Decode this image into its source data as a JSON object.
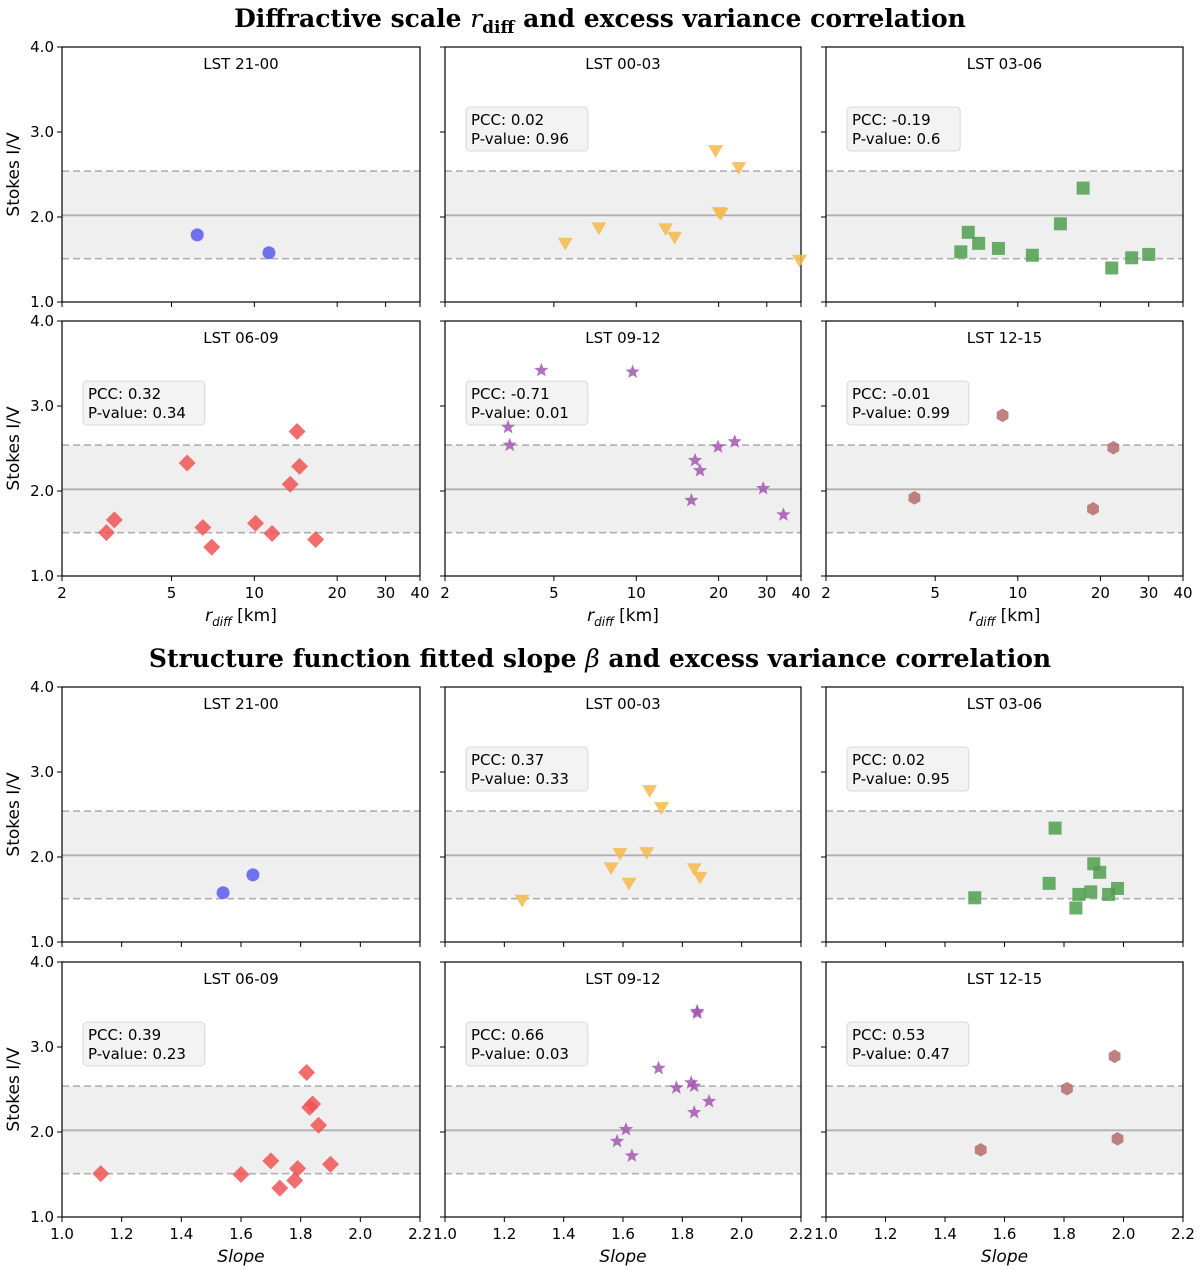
{
  "figure": {
    "title_top_prefix": "Diffractive scale ",
    "title_top_var": "r",
    "title_top_sub": "diff",
    "title_top_suffix": " and excess variance correlation",
    "title_bottom_prefix": "Structure function fitted slope ",
    "title_bottom_var": "β",
    "title_bottom_suffix": " and excess variance correlation"
  },
  "series_styles": {
    "LST 21-00": {
      "marker": "circle",
      "color": "#5a5aee"
    },
    "LST 00-03": {
      "marker": "triangle_down",
      "color": "#f6b84c"
    },
    "LST 03-06": {
      "marker": "square",
      "color": "#4f9f4f"
    },
    "LST 06-09": {
      "marker": "diamond",
      "color": "#f05555"
    },
    "LST 09-12": {
      "marker": "star",
      "color": "#a357b0"
    },
    "LST 12-15": {
      "marker": "hexagon",
      "color": "#b56b6b"
    }
  },
  "reference": {
    "mean": 2.02,
    "lower": 1.51,
    "upper": 2.54
  },
  "chart_data": [
    {
      "type": "scatter",
      "title": "Diffractive scale r_diff and excess variance correlation",
      "xscale": "log",
      "xlim": [
        2,
        40
      ],
      "ylim": [
        1.0,
        4.0
      ],
      "xticks": [
        2,
        5,
        10,
        20,
        30,
        40
      ],
      "yticks": [
        1.0,
        2.0,
        3.0,
        4.0
      ],
      "xlabel_main": "r",
      "xlabel_sub": "diff",
      "xlabel_rest": " [km]",
      "ylabel": "Stokes I/V",
      "panels": [
        {
          "title": "LST 21-00",
          "x": [
            6.2,
            11.3
          ],
          "y": [
            1.79,
            1.58
          ]
        },
        {
          "title": "LST 00-03",
          "pcc": "PCC: 0.02",
          "pvalue": "P-value: 0.96",
          "x": [
            5.5,
            7.3,
            12.8,
            13.8,
            19.5,
            20.1,
            20.4,
            23.7,
            39.5
          ],
          "y": [
            1.69,
            1.87,
            1.86,
            1.76,
            2.78,
            2.05,
            2.04,
            2.58,
            1.49
          ]
        },
        {
          "title": "LST 03-06",
          "pcc": "PCC: -0.19",
          "pvalue": "P-value: 0.6",
          "x": [
            6.2,
            6.6,
            7.2,
            8.5,
            11.3,
            14.3,
            17.3,
            22.0,
            26.0,
            30.0
          ],
          "y": [
            1.59,
            1.82,
            1.69,
            1.63,
            1.55,
            1.92,
            2.34,
            1.4,
            1.52,
            1.56
          ]
        },
        {
          "title": "LST 06-09",
          "pcc": "PCC: 0.32",
          "pvalue": "P-value: 0.34",
          "x": [
            2.9,
            3.1,
            5.7,
            6.5,
            7.0,
            10.1,
            11.6,
            13.5,
            14.3,
            14.6,
            16.7
          ],
          "y": [
            1.51,
            1.66,
            2.33,
            1.57,
            1.34,
            1.62,
            1.5,
            2.08,
            2.7,
            2.29,
            1.43
          ]
        },
        {
          "title": "LST 09-12",
          "pcc": "PCC: -0.71",
          "pvalue": "P-value: 0.01",
          "x": [
            3.4,
            3.45,
            4.5,
            9.7,
            15.9,
            16.4,
            17.1,
            19.9,
            22.9,
            29.1,
            34.5
          ],
          "y": [
            2.75,
            2.54,
            3.42,
            3.4,
            1.89,
            2.36,
            2.24,
            2.52,
            2.58,
            2.03,
            1.72
          ]
        },
        {
          "title": "LST 12-15",
          "pcc": "PCC: -0.01",
          "pvalue": "P-value: 0.99",
          "x": [
            4.2,
            8.8,
            18.8,
            22.3
          ],
          "y": [
            1.92,
            2.89,
            1.79,
            2.51
          ]
        }
      ]
    },
    {
      "type": "scatter",
      "title": "Structure function fitted slope β and excess variance correlation",
      "xscale": "linear",
      "xlim": [
        1.0,
        2.2
      ],
      "ylim": [
        1.0,
        4.0
      ],
      "xticks": [
        1.0,
        1.2,
        1.4,
        1.6,
        1.8,
        2.0,
        2.2
      ],
      "yticks": [
        1.0,
        2.0,
        3.0,
        4.0
      ],
      "xlabel_main": "Slope",
      "ylabel": "Stokes I/V",
      "panels": [
        {
          "title": "LST 21-00",
          "x": [
            1.54,
            1.64
          ],
          "y": [
            1.58,
            1.79
          ]
        },
        {
          "title": "LST 00-03",
          "pcc": "PCC: 0.37",
          "pvalue": "P-value: 0.33",
          "x": [
            1.26,
            1.56,
            1.59,
            1.62,
            1.68,
            1.69,
            1.73,
            1.84,
            1.86
          ],
          "y": [
            1.49,
            1.87,
            2.04,
            1.69,
            2.05,
            2.78,
            2.58,
            1.86,
            1.76
          ]
        },
        {
          "title": "LST 03-06",
          "pcc": "PCC: 0.02",
          "pvalue": "P-value: 0.95",
          "x": [
            1.5,
            1.75,
            1.77,
            1.84,
            1.85,
            1.89,
            1.9,
            1.92,
            1.95,
            1.98
          ],
          "y": [
            1.52,
            1.69,
            2.34,
            1.4,
            1.56,
            1.59,
            1.92,
            1.82,
            1.56,
            1.63
          ]
        },
        {
          "title": "LST 06-09",
          "pcc": "PCC: 0.39",
          "pvalue": "P-value: 0.23",
          "x": [
            1.13,
            1.6,
            1.7,
            1.73,
            1.78,
            1.79,
            1.82,
            1.83,
            1.84,
            1.86,
            1.9
          ],
          "y": [
            1.51,
            1.5,
            1.66,
            1.34,
            1.43,
            1.57,
            2.7,
            2.29,
            2.33,
            2.08,
            1.62
          ]
        },
        {
          "title": "LST 09-12",
          "pcc": "PCC: 0.66",
          "pvalue": "P-value: 0.03",
          "x": [
            1.58,
            1.61,
            1.63,
            1.72,
            1.78,
            1.83,
            1.84,
            1.84,
            1.85,
            1.85,
            1.89
          ],
          "y": [
            1.89,
            2.03,
            1.72,
            2.75,
            2.52,
            2.58,
            2.54,
            2.23,
            3.4,
            3.42,
            2.36
          ]
        },
        {
          "title": "LST 12-15",
          "pcc": "PCC: 0.53",
          "pvalue": "P-value: 0.47",
          "x": [
            1.52,
            1.81,
            1.97,
            1.98
          ],
          "y": [
            1.79,
            2.51,
            2.89,
            1.92
          ]
        }
      ]
    }
  ]
}
